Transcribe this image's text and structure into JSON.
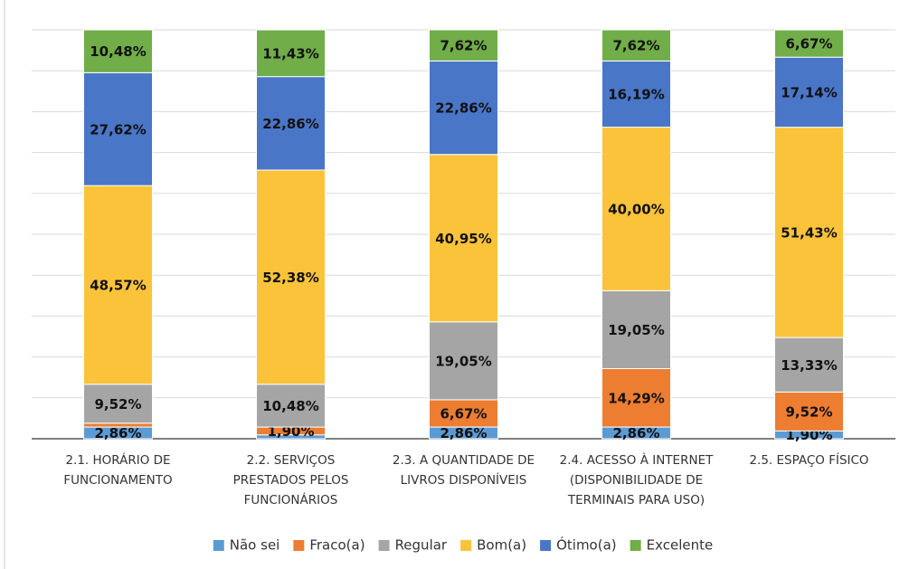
{
  "chart_data": {
    "type": "stacked_bar",
    "categories": [
      [
        "2.1. HORÁRIO DE",
        "FUNCIONAMENTO"
      ],
      [
        "2.2. SERVIÇOS",
        "PRESTADOS PELOS",
        "FUNCIONÁRIOS"
      ],
      [
        "2.3. A QUANTIDADE DE",
        "LIVROS DISPONÍVEIS"
      ],
      [
        "2.4. ACESSO À INTERNET",
        "(DISPONIBILIDADE DE",
        "TERMINAIS PARA USO)"
      ],
      [
        "2.5. ESPAÇO FÍSICO"
      ]
    ],
    "series": [
      {
        "name": "Não sei",
        "color": "#5b9bd5",
        "values": [
          2.86,
          0.95,
          2.86,
          2.86,
          1.9
        ],
        "value_labels": [
          "2,86%",
          null,
          "2,86%",
          "2,86%",
          "1,90%"
        ]
      },
      {
        "name": "Fraco(a)",
        "color": "#ed7d31",
        "values": [
          0.95,
          1.9,
          6.67,
          14.29,
          9.52
        ],
        "value_labels": [
          null,
          "1,90%",
          "6,67%",
          "14,29%",
          "9,52%"
        ]
      },
      {
        "name": "Regular",
        "color": "#a5a5a5",
        "values": [
          9.52,
          10.48,
          19.05,
          19.05,
          13.33
        ],
        "value_labels": [
          "9,52%",
          "10,48%",
          "19,05%",
          "19,05%",
          "13,33%"
        ]
      },
      {
        "name": "Bom(a)",
        "color": "#fbc33a",
        "values": [
          48.57,
          52.38,
          40.95,
          40.0,
          51.43
        ],
        "value_labels": [
          "48,57%",
          "52,38%",
          "40,95%",
          "40,00%",
          "51,43%"
        ]
      },
      {
        "name": "Ótimo(a)",
        "color": "#4a76c8",
        "values": [
          27.62,
          22.86,
          22.86,
          16.19,
          17.14
        ],
        "value_labels": [
          "27,62%",
          "22,86%",
          "22,86%",
          "16,19%",
          "17,14%"
        ]
      },
      {
        "name": "Excelente",
        "color": "#71ad48",
        "values": [
          10.48,
          11.43,
          7.62,
          7.62,
          6.67
        ],
        "value_labels": [
          "10,48%",
          "11,43%",
          "7,62%",
          "7,62%",
          "6,67%"
        ]
      }
    ],
    "ylim": [
      0,
      100
    ],
    "yticks": [
      0,
      10,
      20,
      30,
      40,
      50,
      60,
      70,
      80,
      90,
      100
    ],
    "grid": true,
    "legend": "bottom"
  }
}
